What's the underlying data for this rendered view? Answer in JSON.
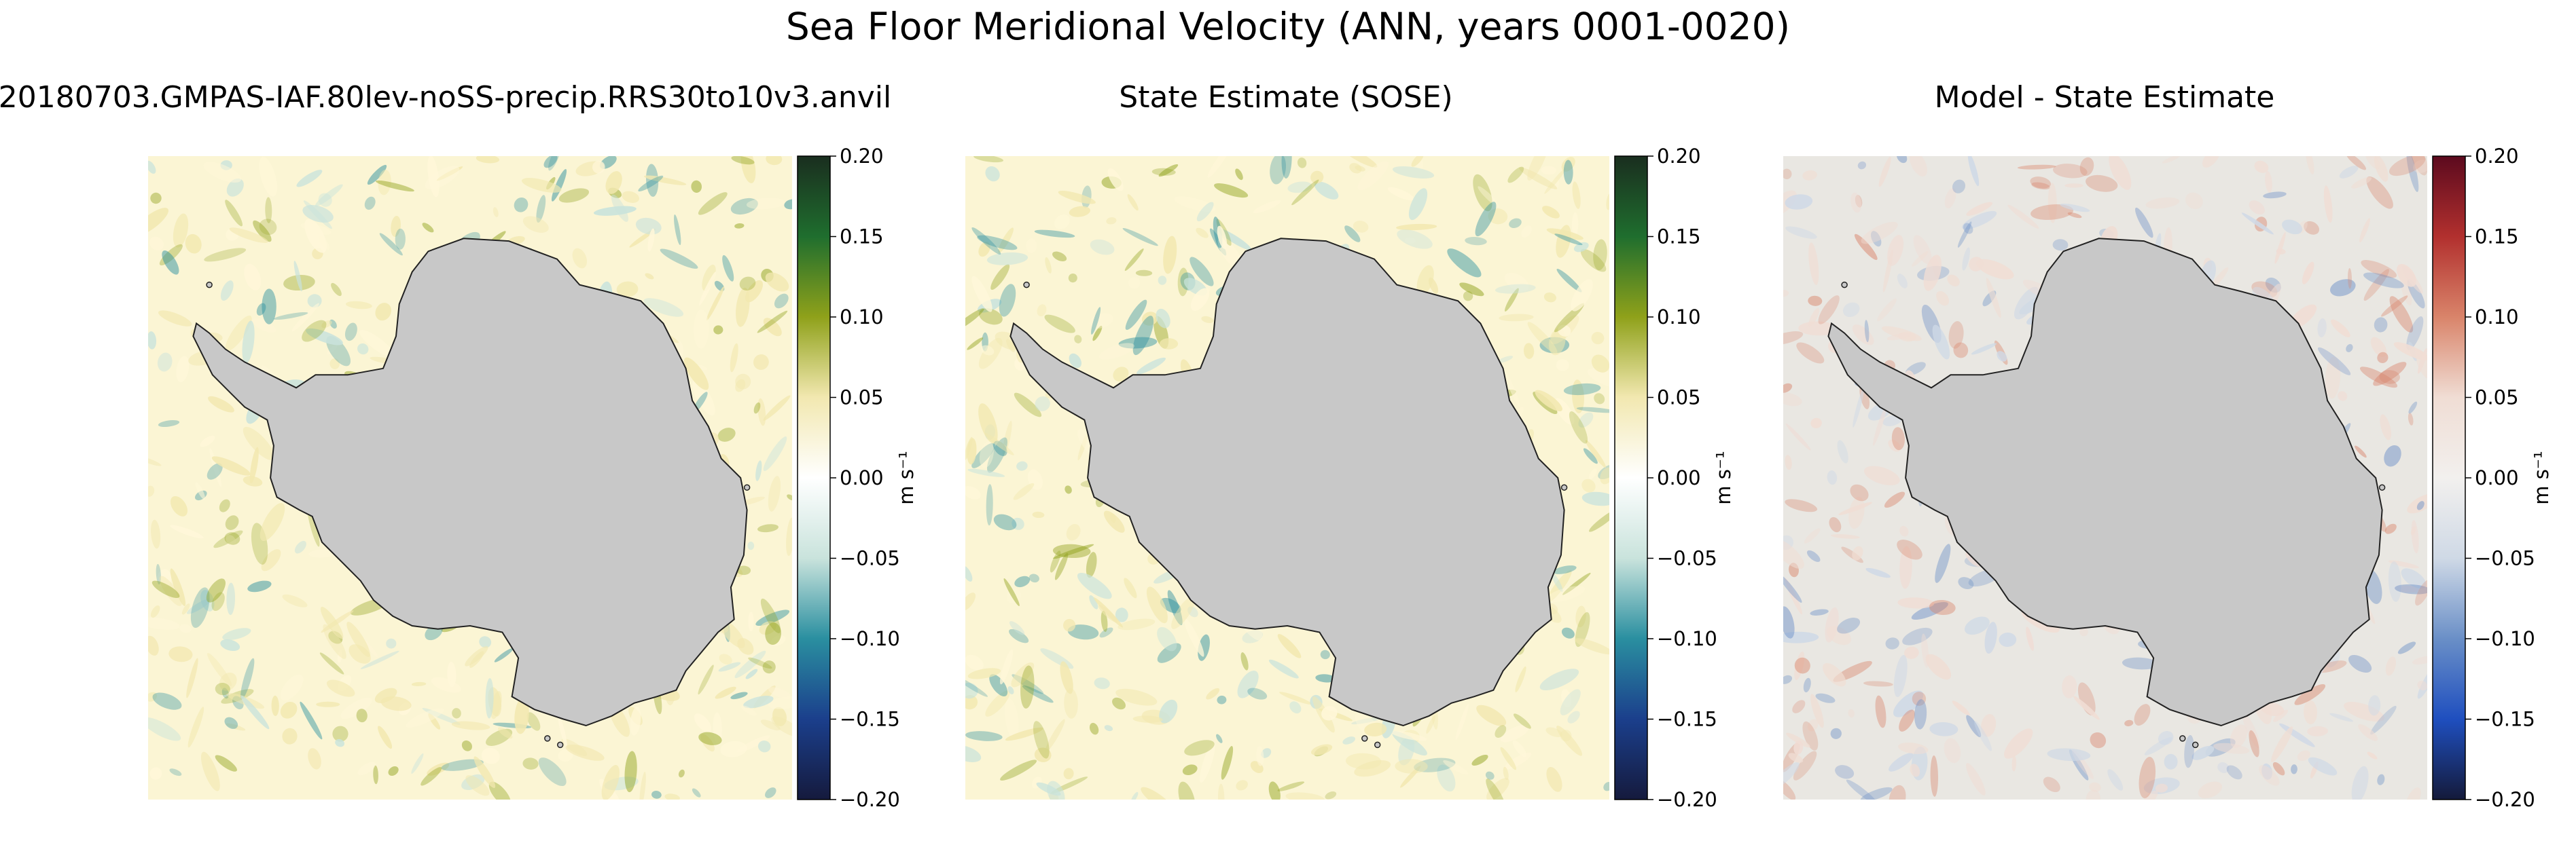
{
  "figure": {
    "title": "Sea Floor Meridional Velocity (ANN, years 0001-0020)"
  },
  "chart_data": [
    {
      "type": "heatmap",
      "title": "20180703.GMPAS-IAF.80lev-noSS-precip.RRS30to10v3.anvil",
      "colormap": "yellow-green-blue diverging",
      "clim": [
        -0.2,
        0.2
      ],
      "colorbar_ticks": [
        "0.20",
        "0.15",
        "0.10",
        "0.05",
        "0.00",
        "−0.05",
        "−0.10",
        "−0.15",
        "−0.20"
      ],
      "colorbar_label": "m s⁻¹",
      "colors": {
        "top": "#1a2e1f",
        "upper": "#1f6e2e",
        "mid_upper": "#8fa11a",
        "near_zero_pos": "#f2e8b0",
        "zero": "#ffffff",
        "near_zero_neg": "#c9e3dc",
        "mid_lower": "#2a8fa0",
        "lower": "#1b3f8c",
        "bottom": "#151a3d"
      }
    },
    {
      "type": "heatmap",
      "title": "State Estimate (SOSE)",
      "colormap": "yellow-green-blue diverging",
      "clim": [
        -0.2,
        0.2
      ],
      "colorbar_ticks": [
        "0.20",
        "0.15",
        "0.10",
        "0.05",
        "0.00",
        "−0.05",
        "−0.10",
        "−0.15",
        "−0.20"
      ],
      "colorbar_label": "m s⁻¹",
      "colors": {
        "top": "#1a2e1f",
        "upper": "#1f6e2e",
        "mid_upper": "#8fa11a",
        "near_zero_pos": "#f2e8b0",
        "zero": "#ffffff",
        "near_zero_neg": "#c9e3dc",
        "mid_lower": "#2a8fa0",
        "lower": "#1b3f8c",
        "bottom": "#151a3d"
      }
    },
    {
      "type": "heatmap",
      "title": "Model - State Estimate",
      "colormap": "red-blue diverging",
      "clim": [
        -0.2,
        0.2
      ],
      "colorbar_ticks": [
        "0.20",
        "0.15",
        "0.10",
        "0.05",
        "0.00",
        "−0.05",
        "−0.10",
        "−0.15",
        "−0.20"
      ],
      "colorbar_label": "m s⁻¹",
      "colors": {
        "top": "#5c0a1e",
        "upper": "#b2302e",
        "mid_upper": "#d9846a",
        "near_zero_pos": "#f0ddd4",
        "zero": "#f2f0ee",
        "near_zero_neg": "#cfd9e6",
        "mid_lower": "#6a8fc7",
        "lower": "#1f4fbf",
        "bottom": "#141a3a"
      }
    }
  ],
  "land_color": "#c8c8c8",
  "ocean_tints": [
    "#fbf5d4",
    "#e9e7e2"
  ]
}
